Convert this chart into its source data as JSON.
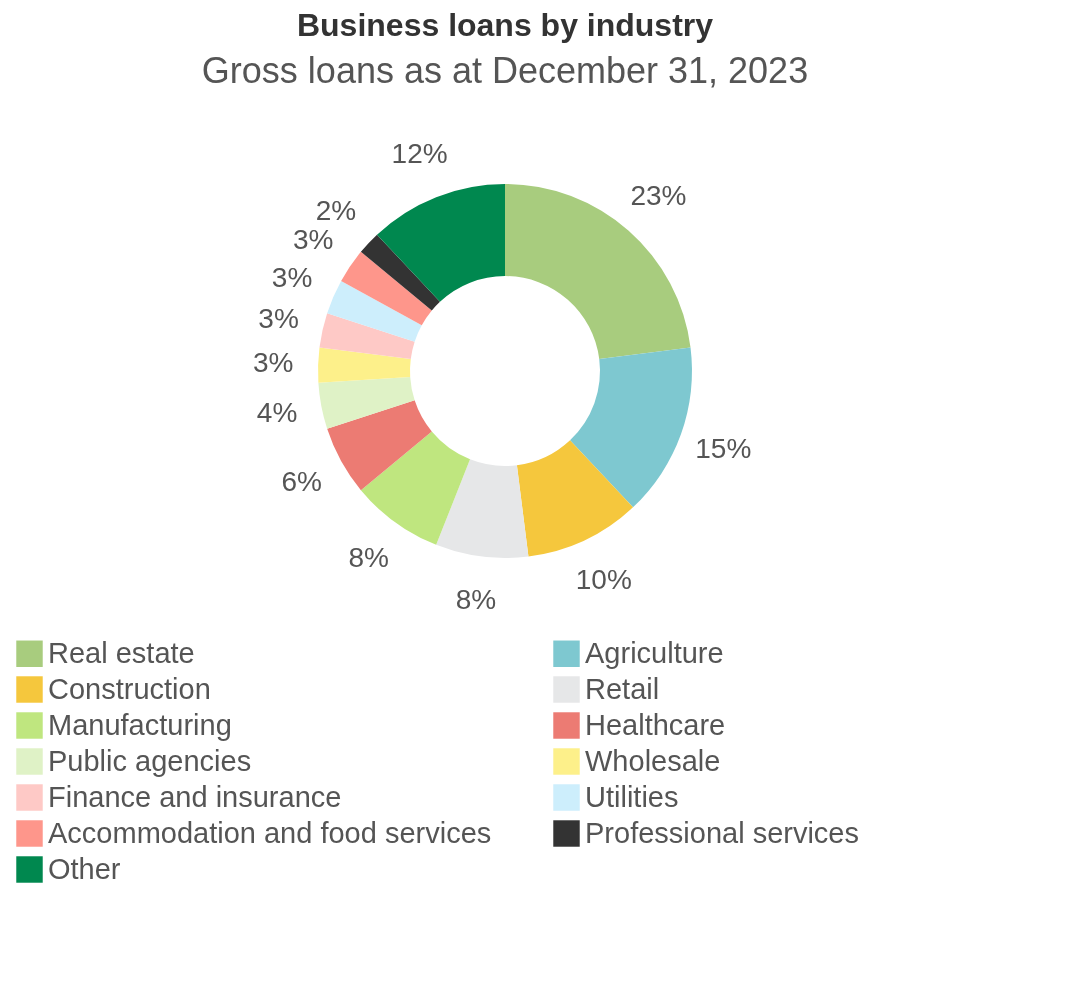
{
  "chart_data": {
    "type": "donut",
    "title": "Business loans by industry",
    "subtitle": "Gross loans as at December 31, 2023",
    "categories": [
      "Real estate",
      "Agriculture",
      "Construction",
      "Retail",
      "Manufacturing",
      "Healthcare",
      "Public agencies",
      "Wholesale",
      "Finance and insurance",
      "Utilities",
      "Accommodation and food services",
      "Professional services",
      "Other"
    ],
    "values": [
      23,
      15,
      10,
      8,
      8,
      6,
      4,
      3,
      3,
      3,
      3,
      2,
      12
    ],
    "value_labels": [
      "23%",
      "15%",
      "10%",
      "8%",
      "8%",
      "6%",
      "4%",
      "3%",
      "3%",
      "3%",
      "3%",
      "2%",
      "12%"
    ],
    "colors": [
      "#a8cc7e",
      "#7ec8d0",
      "#f5c73d",
      "#e6e7e8",
      "#bfe67f",
      "#ec7b73",
      "#dff2c6",
      "#fdf08a",
      "#fec9c6",
      "#cdeefc",
      "#fe968b",
      "#333333",
      "#00884f"
    ],
    "legend": "bottom"
  }
}
